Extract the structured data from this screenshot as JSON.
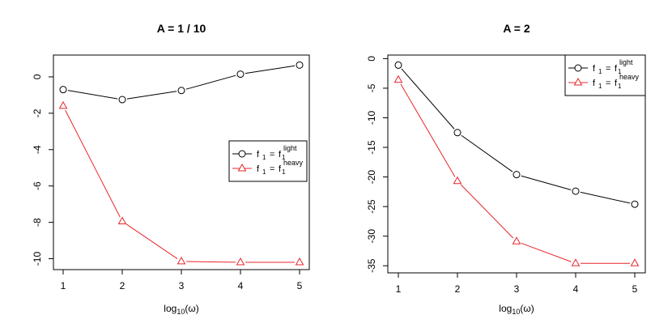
{
  "chart_data": [
    {
      "type": "line",
      "title": "A = 1 / 10",
      "xlabel": "log10(ω)",
      "x": [
        1,
        2,
        3,
        4,
        5
      ],
      "xticks": [
        "1",
        "2",
        "3",
        "4",
        "5"
      ],
      "ylim": [
        -10.6,
        1.2
      ],
      "yticks": [
        "0",
        "-2",
        "-4",
        "-6",
        "-8",
        "-10"
      ],
      "legend_position": "right-middle",
      "series": [
        {
          "name": "f1 = f1 light",
          "label_main": "f",
          "label_sub": "1",
          "label_eq": "=",
          "label_sup": "light",
          "color": "#000000",
          "marker": "circle",
          "values": [
            -0.7,
            -1.25,
            -0.75,
            0.15,
            0.65
          ]
        },
        {
          "name": "f1 = f1 heavy",
          "label_main": "f",
          "label_sub": "1",
          "label_eq": "=",
          "label_sup": "heavy",
          "color": "#e8262b",
          "marker": "triangle",
          "values": [
            -1.6,
            -7.95,
            -10.15,
            -10.2,
            -10.2
          ]
        }
      ]
    },
    {
      "type": "line",
      "title": "A = 2",
      "xlabel": "log10(ω)",
      "x": [
        1,
        2,
        3,
        4,
        5
      ],
      "xticks": [
        "1",
        "2",
        "3",
        "4",
        "5"
      ],
      "ylim": [
        -36.2,
        0.6
      ],
      "yticks": [
        "0",
        "-5",
        "-10",
        "-15",
        "-20",
        "-25",
        "-30",
        "-35"
      ],
      "legend_position": "top-right",
      "series": [
        {
          "name": "f1 = f1 light",
          "label_main": "f",
          "label_sub": "1",
          "label_eq": "=",
          "label_sup": "light",
          "color": "#000000",
          "marker": "circle",
          "values": [
            -1.1,
            -12.5,
            -19.6,
            -22.4,
            -24.6
          ]
        },
        {
          "name": "f1 = f1 heavy",
          "label_main": "f",
          "label_sub": "1",
          "label_eq": "=",
          "label_sup": "heavy",
          "color": "#e8262b",
          "marker": "triangle",
          "values": [
            -3.6,
            -20.7,
            -30.9,
            -34.6,
            -34.6
          ]
        }
      ]
    }
  ]
}
